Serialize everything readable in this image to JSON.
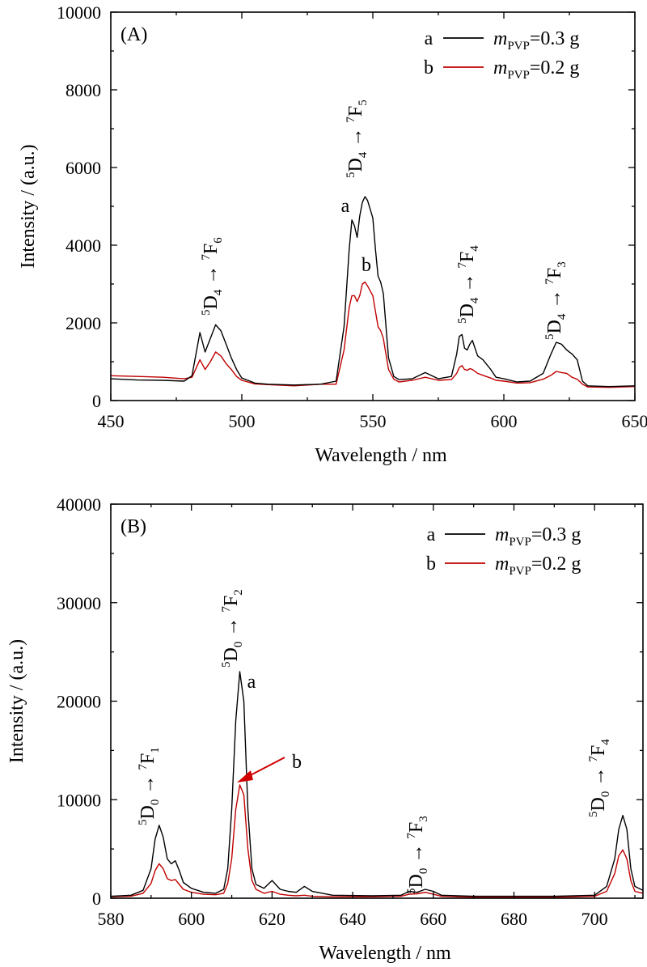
{
  "chart_data": [
    {
      "type": "line",
      "panel_label": "(A)",
      "xlabel": "Wavelength / nm",
      "ylabel": "Intensity / (a.u.)",
      "xlim": [
        450,
        650
      ],
      "ylim": [
        0,
        10000
      ],
      "xticks": [
        450,
        500,
        550,
        600,
        650
      ],
      "yticks": [
        0,
        2000,
        4000,
        6000,
        8000,
        10000
      ],
      "legend_position": "top-right",
      "series": [
        {
          "name": "m_PVP=0.3 g",
          "tag": "a",
          "color": "#000000",
          "points": [
            [
              450,
              560
            ],
            [
              460,
              530
            ],
            [
              470,
              520
            ],
            [
              478,
              500
            ],
            [
              481,
              640
            ],
            [
              484,
              1750
            ],
            [
              486,
              1250
            ],
            [
              488,
              1600
            ],
            [
              490,
              1950
            ],
            [
              492,
              1800
            ],
            [
              494,
              1450
            ],
            [
              496,
              1100
            ],
            [
              498,
              800
            ],
            [
              500,
              580
            ],
            [
              505,
              450
            ],
            [
              510,
              420
            ],
            [
              520,
              400
            ],
            [
              530,
              420
            ],
            [
              536,
              500
            ],
            [
              539,
              1900
            ],
            [
              541,
              3900
            ],
            [
              542,
              4650
            ],
            [
              543,
              4500
            ],
            [
              544,
              4200
            ],
            [
              545,
              4750
            ],
            [
              546,
              5100
            ],
            [
              547,
              5250
            ],
            [
              548,
              5150
            ],
            [
              550,
              4700
            ],
            [
              551,
              3900
            ],
            [
              552,
              3200
            ],
            [
              553,
              3050
            ],
            [
              554,
              2750
            ],
            [
              556,
              1100
            ],
            [
              558,
              620
            ],
            [
              560,
              540
            ],
            [
              565,
              560
            ],
            [
              570,
              720
            ],
            [
              575,
              560
            ],
            [
              580,
              620
            ],
            [
              582,
              1200
            ],
            [
              583,
              1650
            ],
            [
              584,
              1700
            ],
            [
              585,
              1350
            ],
            [
              586,
              1300
            ],
            [
              587,
              1450
            ],
            [
              588,
              1550
            ],
            [
              590,
              1150
            ],
            [
              592,
              1050
            ],
            [
              595,
              800
            ],
            [
              597,
              600
            ],
            [
              600,
              560
            ],
            [
              605,
              480
            ],
            [
              610,
              500
            ],
            [
              615,
              700
            ],
            [
              618,
              1200
            ],
            [
              620,
              1500
            ],
            [
              622,
              1450
            ],
            [
              624,
              1300
            ],
            [
              626,
              1200
            ],
            [
              628,
              1050
            ],
            [
              630,
              500
            ],
            [
              632,
              380
            ],
            [
              640,
              360
            ],
            [
              650,
              380
            ]
          ]
        },
        {
          "name": "m_PVP=0.2 g",
          "tag": "b",
          "color": "#c00000",
          "points": [
            [
              450,
              640
            ],
            [
              460,
              620
            ],
            [
              470,
              600
            ],
            [
              478,
              560
            ],
            [
              481,
              600
            ],
            [
              484,
              1050
            ],
            [
              486,
              800
            ],
            [
              488,
              1000
            ],
            [
              490,
              1250
            ],
            [
              492,
              1150
            ],
            [
              494,
              950
            ],
            [
              496,
              800
            ],
            [
              498,
              620
            ],
            [
              500,
              520
            ],
            [
              505,
              430
            ],
            [
              510,
              410
            ],
            [
              520,
              380
            ],
            [
              530,
              420
            ],
            [
              536,
              420
            ],
            [
              539,
              1300
            ],
            [
              541,
              2400
            ],
            [
              542,
              2700
            ],
            [
              543,
              2700
            ],
            [
              544,
              2550
            ],
            [
              545,
              2700
            ],
            [
              546,
              3000
            ],
            [
              547,
              3050
            ],
            [
              548,
              2950
            ],
            [
              550,
              2700
            ],
            [
              551,
              2300
            ],
            [
              552,
              1900
            ],
            [
              553,
              1800
            ],
            [
              554,
              1600
            ],
            [
              556,
              800
            ],
            [
              558,
              550
            ],
            [
              560,
              480
            ],
            [
              565,
              520
            ],
            [
              570,
              600
            ],
            [
              575,
              520
            ],
            [
              580,
              540
            ],
            [
              582,
              700
            ],
            [
              583,
              850
            ],
            [
              584,
              900
            ],
            [
              585,
              800
            ],
            [
              586,
              780
            ],
            [
              587,
              820
            ],
            [
              588,
              800
            ],
            [
              590,
              700
            ],
            [
              592,
              650
            ],
            [
              595,
              580
            ],
            [
              597,
              520
            ],
            [
              600,
              500
            ],
            [
              605,
              450
            ],
            [
              610,
              460
            ],
            [
              615,
              550
            ],
            [
              618,
              650
            ],
            [
              620,
              750
            ],
            [
              622,
              720
            ],
            [
              624,
              700
            ],
            [
              626,
              600
            ],
            [
              628,
              550
            ],
            [
              630,
              420
            ],
            [
              632,
              350
            ],
            [
              640,
              340
            ],
            [
              650,
              360
            ]
          ]
        }
      ],
      "annotations": [
        {
          "label": "5D4 → 7F6",
          "parts": [
            "5",
            "D",
            "4",
            " → ",
            "7",
            "F",
            "6"
          ]
        },
        {
          "label": "5D4 → 7F5",
          "parts": [
            "5",
            "D",
            "4",
            " → ",
            "7",
            "F",
            "5"
          ]
        },
        {
          "label": "5D4 → 7F4",
          "parts": [
            "5",
            "D",
            "4",
            " → ",
            "7",
            "F",
            "4"
          ]
        },
        {
          "label": "5D4 → 7F3",
          "parts": [
            "5",
            "D",
            "4",
            " → ",
            "7",
            "F",
            "3"
          ]
        },
        {
          "label": "a"
        },
        {
          "label": "b"
        }
      ]
    },
    {
      "type": "line",
      "panel_label": "(B)",
      "xlabel": "Wavelength / nm",
      "ylabel": "Intensity / (a.u.)",
      "xlim": [
        580,
        712
      ],
      "ylim": [
        0,
        40000
      ],
      "xticks": [
        580,
        600,
        620,
        640,
        660,
        680,
        700
      ],
      "yticks": [
        0,
        10000,
        20000,
        30000,
        40000
      ],
      "legend_position": "top-right",
      "series": [
        {
          "name": "m_PVP=0.3 g",
          "tag": "a",
          "color": "#000000",
          "points": [
            [
              580,
              200
            ],
            [
              585,
              300
            ],
            [
              588,
              800
            ],
            [
              590,
              3000
            ],
            [
              591,
              6000
            ],
            [
              592,
              7400
            ],
            [
              593,
              6200
            ],
            [
              594,
              4000
            ],
            [
              595,
              3500
            ],
            [
              596,
              3800
            ],
            [
              597,
              2800
            ],
            [
              598,
              1600
            ],
            [
              600,
              1000
            ],
            [
              603,
              600
            ],
            [
              606,
              500
            ],
            [
              608,
              900
            ],
            [
              609,
              3000
            ],
            [
              610,
              9000
            ],
            [
              611,
              18000
            ],
            [
              612,
              23000
            ],
            [
              613,
              20000
            ],
            [
              614,
              9000
            ],
            [
              615,
              3000
            ],
            [
              616,
              1400
            ],
            [
              618,
              1000
            ],
            [
              620,
              1800
            ],
            [
              622,
              900
            ],
            [
              624,
              700
            ],
            [
              626,
              600
            ],
            [
              628,
              1200
            ],
            [
              630,
              700
            ],
            [
              635,
              300
            ],
            [
              645,
              250
            ],
            [
              652,
              300
            ],
            [
              654,
              700
            ],
            [
              656,
              600
            ],
            [
              658,
              900
            ],
            [
              660,
              700
            ],
            [
              662,
              300
            ],
            [
              670,
              200
            ],
            [
              680,
              200
            ],
            [
              690,
              200
            ],
            [
              700,
              300
            ],
            [
              703,
              1200
            ],
            [
              705,
              4000
            ],
            [
              706,
              7000
            ],
            [
              707,
              8400
            ],
            [
              708,
              7000
            ],
            [
              709,
              3000
            ],
            [
              710,
              1200
            ],
            [
              712,
              800
            ]
          ]
        },
        {
          "name": "m_PVP=0.2 g",
          "tag": "b",
          "color": "#c00000",
          "points": [
            [
              580,
              150
            ],
            [
              585,
              200
            ],
            [
              588,
              500
            ],
            [
              590,
              1500
            ],
            [
              591,
              2800
            ],
            [
              592,
              3500
            ],
            [
              593,
              3000
            ],
            [
              594,
              2000
            ],
            [
              595,
              1800
            ],
            [
              596,
              1900
            ],
            [
              597,
              1400
            ],
            [
              598,
              900
            ],
            [
              600,
              600
            ],
            [
              603,
              400
            ],
            [
              606,
              350
            ],
            [
              608,
              500
            ],
            [
              609,
              1500
            ],
            [
              610,
              4000
            ],
            [
              611,
              9000
            ],
            [
              612,
              11500
            ],
            [
              613,
              10500
            ],
            [
              614,
              5000
            ],
            [
              615,
              1800
            ],
            [
              616,
              900
            ],
            [
              618,
              500
            ],
            [
              620,
              700
            ],
            [
              622,
              400
            ],
            [
              624,
              300
            ],
            [
              626,
              250
            ],
            [
              628,
              300
            ],
            [
              630,
              200
            ],
            [
              635,
              150
            ],
            [
              645,
              150
            ],
            [
              652,
              200
            ],
            [
              654,
              400
            ],
            [
              656,
              450
            ],
            [
              658,
              600
            ],
            [
              660,
              400
            ],
            [
              662,
              200
            ],
            [
              670,
              100
            ],
            [
              680,
              100
            ],
            [
              690,
              100
            ],
            [
              700,
              200
            ],
            [
              703,
              700
            ],
            [
              705,
              2500
            ],
            [
              706,
              4300
            ],
            [
              707,
              4900
            ],
            [
              708,
              4000
            ],
            [
              709,
              1800
            ],
            [
              710,
              700
            ],
            [
              712,
              500
            ]
          ]
        }
      ],
      "annotations": [
        {
          "label": "5D0 → 7F1",
          "parts": [
            "5",
            "D",
            "0",
            " → ",
            "7",
            "F",
            "1"
          ]
        },
        {
          "label": "5D0 → 7F2",
          "parts": [
            "5",
            "D",
            "0",
            " → ",
            "7",
            "F",
            "2"
          ]
        },
        {
          "label": "5D0 → 7F3",
          "parts": [
            "5",
            "D",
            "0",
            " → ",
            "7",
            "F",
            "3"
          ]
        },
        {
          "label": "5D0 → 7F4",
          "parts": [
            "5",
            "D",
            "0",
            " → ",
            "7",
            "F",
            "4"
          ]
        },
        {
          "label": "a"
        },
        {
          "label": "b"
        }
      ]
    }
  ]
}
